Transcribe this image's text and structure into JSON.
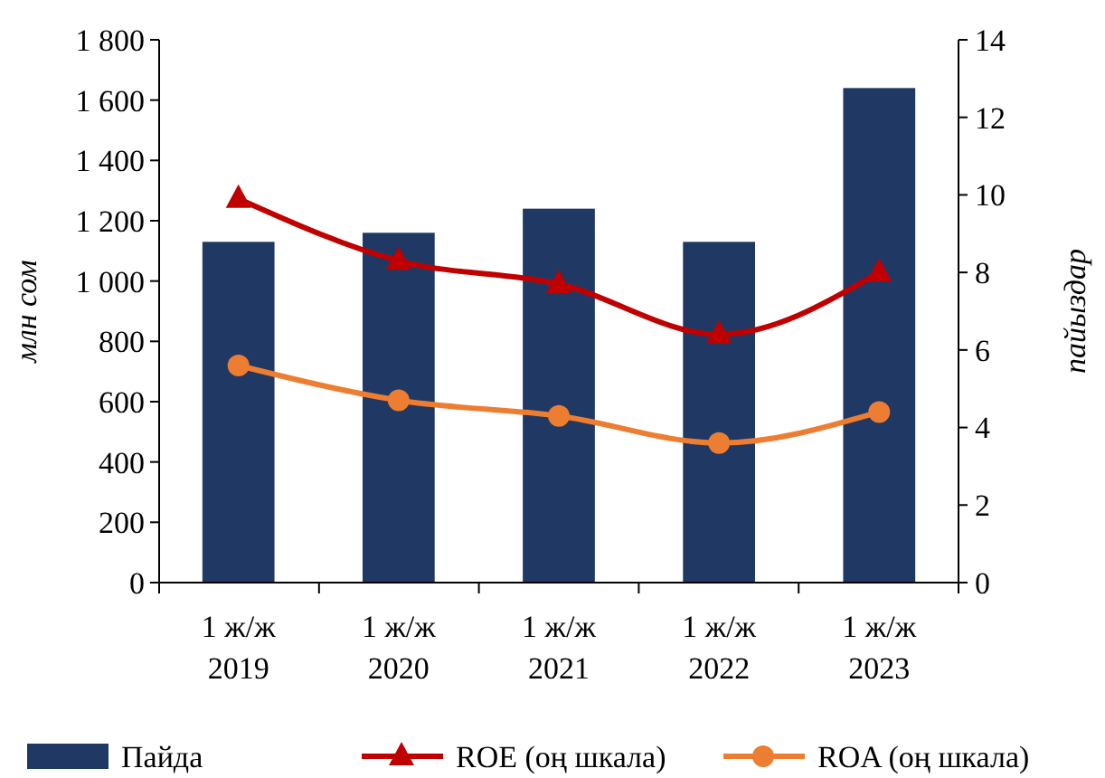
{
  "chart_data": {
    "type": "bar",
    "ylabel": "млн сом",
    "y2label": "пайыздар",
    "categories": [
      "1 ж/ж\n2019",
      "1 ж/ж\n2020",
      "1 ж/ж\n2021",
      "1 ж/ж\n2022",
      "1 ж/ж\n2023"
    ],
    "series": [
      {
        "name": "Пайда",
        "color": "#203864",
        "values": [
          1130,
          1160,
          1240,
          1130,
          1640
        ]
      },
      {
        "name": "ROE (оң  шкала)",
        "type": "line",
        "axis": "y2",
        "color": "#c00000",
        "marker": "triangle",
        "values": [
          9.9,
          8.3,
          7.7,
          6.4,
          8.0
        ]
      },
      {
        "name": "ROA (оң  шкала)",
        "type": "line",
        "axis": "y2",
        "color": "#ed7d31",
        "marker": "circle",
        "values": [
          5.6,
          4.7,
          4.3,
          3.6,
          4.4
        ]
      }
    ],
    "ylim": [
      0,
      1800
    ],
    "yticks": [
      0,
      200,
      400,
      600,
      800,
      {
        "value": 1000,
        "label": "1 000"
      },
      {
        "value": 1200,
        "label": "1 200"
      },
      {
        "value": 1400,
        "label": "1 400"
      },
      {
        "value": 1600,
        "label": "1 600"
      },
      {
        "value": 1800,
        "label": "1 800"
      }
    ],
    "y2lim": [
      0,
      14
    ],
    "y2ticks": [
      0,
      2,
      4,
      6,
      8,
      10,
      12,
      14
    ],
    "grid": false,
    "legend": "bottom"
  }
}
